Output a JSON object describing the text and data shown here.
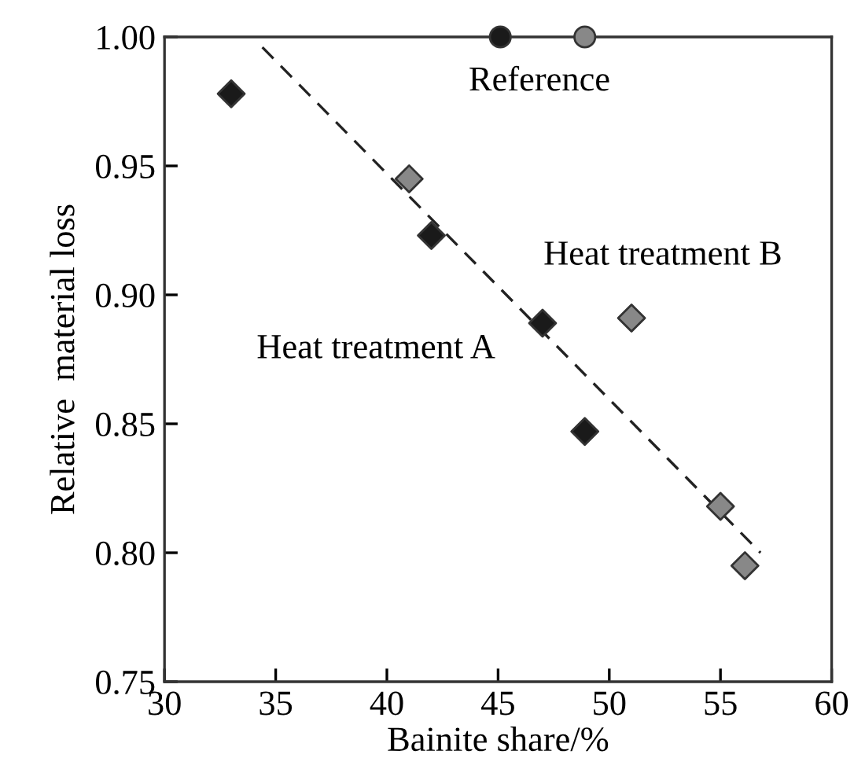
{
  "chart_data": {
    "type": "scatter",
    "xlabel": "Bainite share/%",
    "ylabel": "Relative  material loss",
    "xlim": [
      30,
      60
    ],
    "ylim": [
      0.75,
      1.0
    ],
    "xticks": [
      30,
      35,
      40,
      45,
      50,
      55,
      60
    ],
    "yticks": [
      {
        "value": 0.75,
        "label": "0.75"
      },
      {
        "value": 0.8,
        "label": "0.80"
      },
      {
        "value": 0.85,
        "label": "0.85"
      },
      {
        "value": 0.9,
        "label": "0.90"
      },
      {
        "value": 0.95,
        "label": "0.95"
      },
      {
        "value": 1.0,
        "label": "1.00"
      }
    ],
    "grid": false,
    "legend": false,
    "series": [
      {
        "type": "line",
        "color": "#222222",
        "line_style": "dashed",
        "marker": "none",
        "x": [
          34.4,
          56.8
        ],
        "values": [
          0.996,
          0.8
        ]
      },
      {
        "color": "#1a1a1a",
        "marker": "diamond",
        "x": [
          33.0,
          42.0,
          47.0,
          48.9
        ],
        "values": [
          0.978,
          0.923,
          0.889,
          0.847
        ]
      },
      {
        "color": "#888888",
        "marker": "diamond",
        "x": [
          41.0,
          51.0,
          55.0,
          56.1
        ],
        "values": [
          0.945,
          0.891,
          0.818,
          0.795
        ]
      },
      {
        "colors": [
          "#1a1a1a",
          "#888888"
        ],
        "marker": "circle",
        "x": [
          45.1,
          48.9
        ],
        "values": [
          1.0,
          1.0
        ]
      }
    ],
    "annotations": [
      "Reference",
      "Heat treatment B",
      "Heat treatment A"
    ]
  }
}
